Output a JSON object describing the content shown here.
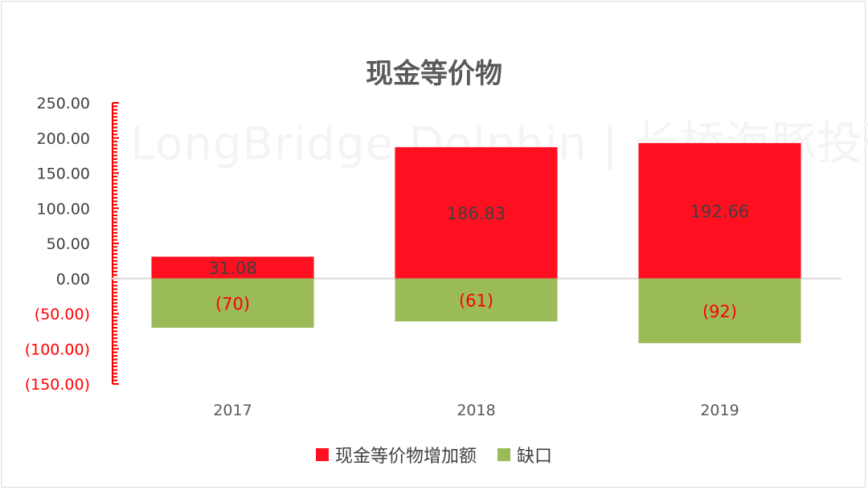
{
  "chart_data": {
    "type": "bar",
    "stacked": true,
    "title": "现金等价物",
    "categories": [
      "2017",
      "2018",
      "2019"
    ],
    "series": [
      {
        "name": "现金等价物增加额",
        "values": [
          31.08,
          186.83,
          192.66
        ],
        "labels": [
          "31.08",
          "186.83",
          "192.66"
        ],
        "color": "#ff0f1f"
      },
      {
        "name": "缺口",
        "values": [
          -70,
          -61,
          -92
        ],
        "labels": [
          "(70)",
          "(61)",
          "(92)"
        ],
        "color": "#9bbb59"
      }
    ],
    "y_ticks": [
      {
        "value": 250,
        "label": "250.00"
      },
      {
        "value": 200,
        "label": "200.00"
      },
      {
        "value": 150,
        "label": "150.00"
      },
      {
        "value": 100,
        "label": "100.00"
      },
      {
        "value": 50,
        "label": "50.00"
      },
      {
        "value": 0,
        "label": "0.00"
      },
      {
        "value": -50,
        "label": "(50.00)"
      },
      {
        "value": -100,
        "label": "(100.00)"
      },
      {
        "value": -150,
        "label": "(150.00)"
      }
    ],
    "ylim": [
      -150,
      250
    ],
    "grid": false,
    "legend_position": "bottom",
    "colors": {
      "positive_tick": "#404040",
      "negative_tick": "#ff0000",
      "axis_ruler": "#ff0000",
      "baseline": "#d9d9d9",
      "data_label_positive": "#404040",
      "data_label_negative": "#ff0000"
    }
  },
  "watermark": "LongBridge Dolphin | 长桥海豚投研"
}
